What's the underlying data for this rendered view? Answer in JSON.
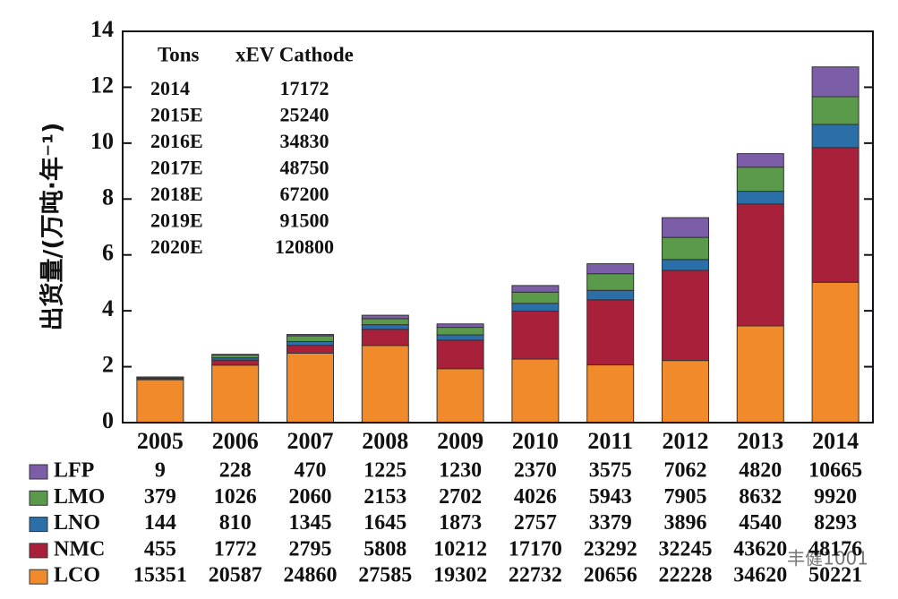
{
  "chart_data": {
    "type": "stacked_bar",
    "y_label": "出货量/(万吨·年⁻¹)",
    "categories": [
      "2005",
      "2006",
      "2007",
      "2008",
      "2009",
      "2010",
      "2011",
      "2012",
      "2013",
      "2014"
    ],
    "ylim": [
      0,
      14
    ],
    "yticks": [
      0,
      2,
      4,
      6,
      8,
      10,
      12,
      14
    ],
    "series": [
      {
        "name": "LCO",
        "color": "#f08a2a",
        "values": [
          1.5351,
          2.0587,
          2.486,
          2.7585,
          1.9302,
          2.2732,
          2.0656,
          2.2228,
          3.462,
          5.0221
        ],
        "value_labels": [
          "15351",
          "20587",
          "24860",
          "27585",
          "19302",
          "22732",
          "20656",
          "22228",
          "34620",
          "50221"
        ]
      },
      {
        "name": "NMC",
        "color": "#a8203a",
        "values": [
          0.0455,
          0.1772,
          0.2795,
          0.5808,
          1.0212,
          1.717,
          2.3292,
          3.2245,
          4.362,
          4.8176
        ],
        "value_labels": [
          "455",
          "1772",
          "2795",
          "5808",
          "10212",
          "17170",
          "23292",
          "32245",
          "43620",
          "48176"
        ]
      },
      {
        "name": "LNO",
        "color": "#2a6fa8",
        "values": [
          0.0144,
          0.081,
          0.1345,
          0.1645,
          0.1873,
          0.2757,
          0.3379,
          0.3896,
          0.454,
          0.8293
        ],
        "value_labels": [
          "144",
          "810",
          "1345",
          "1645",
          "1873",
          "2757",
          "3379",
          "3896",
          "4540",
          "8293"
        ]
      },
      {
        "name": "LMO",
        "color": "#5a9a4a",
        "values": [
          0.0379,
          0.1026,
          0.206,
          0.2153,
          0.2702,
          0.4026,
          0.5943,
          0.7905,
          0.8632,
          0.992
        ],
        "value_labels": [
          "379",
          "1026",
          "2060",
          "2153",
          "2702",
          "4026",
          "5943",
          "7905",
          "8632",
          "9920"
        ]
      },
      {
        "name": "LFP",
        "color": "#7b5ea7",
        "values": [
          0.0009,
          0.0228,
          0.047,
          0.1225,
          0.123,
          0.237,
          0.3575,
          0.7062,
          0.482,
          1.0665
        ],
        "value_labels": [
          "9",
          "228",
          "470",
          "1225",
          "1230",
          "2370",
          "3575",
          "7062",
          "4820",
          "10665"
        ]
      }
    ],
    "inset": {
      "header": [
        "Tons",
        "xEV Cathode"
      ],
      "rows": [
        [
          "2014",
          "17172"
        ],
        [
          "2015E",
          "25240"
        ],
        [
          "2016E",
          "34830"
        ],
        [
          "2017E",
          "48750"
        ],
        [
          "2018E",
          "67200"
        ],
        [
          "2019E",
          "91500"
        ],
        [
          "2020E",
          "120800"
        ]
      ]
    },
    "watermark": "丰健1001"
  }
}
